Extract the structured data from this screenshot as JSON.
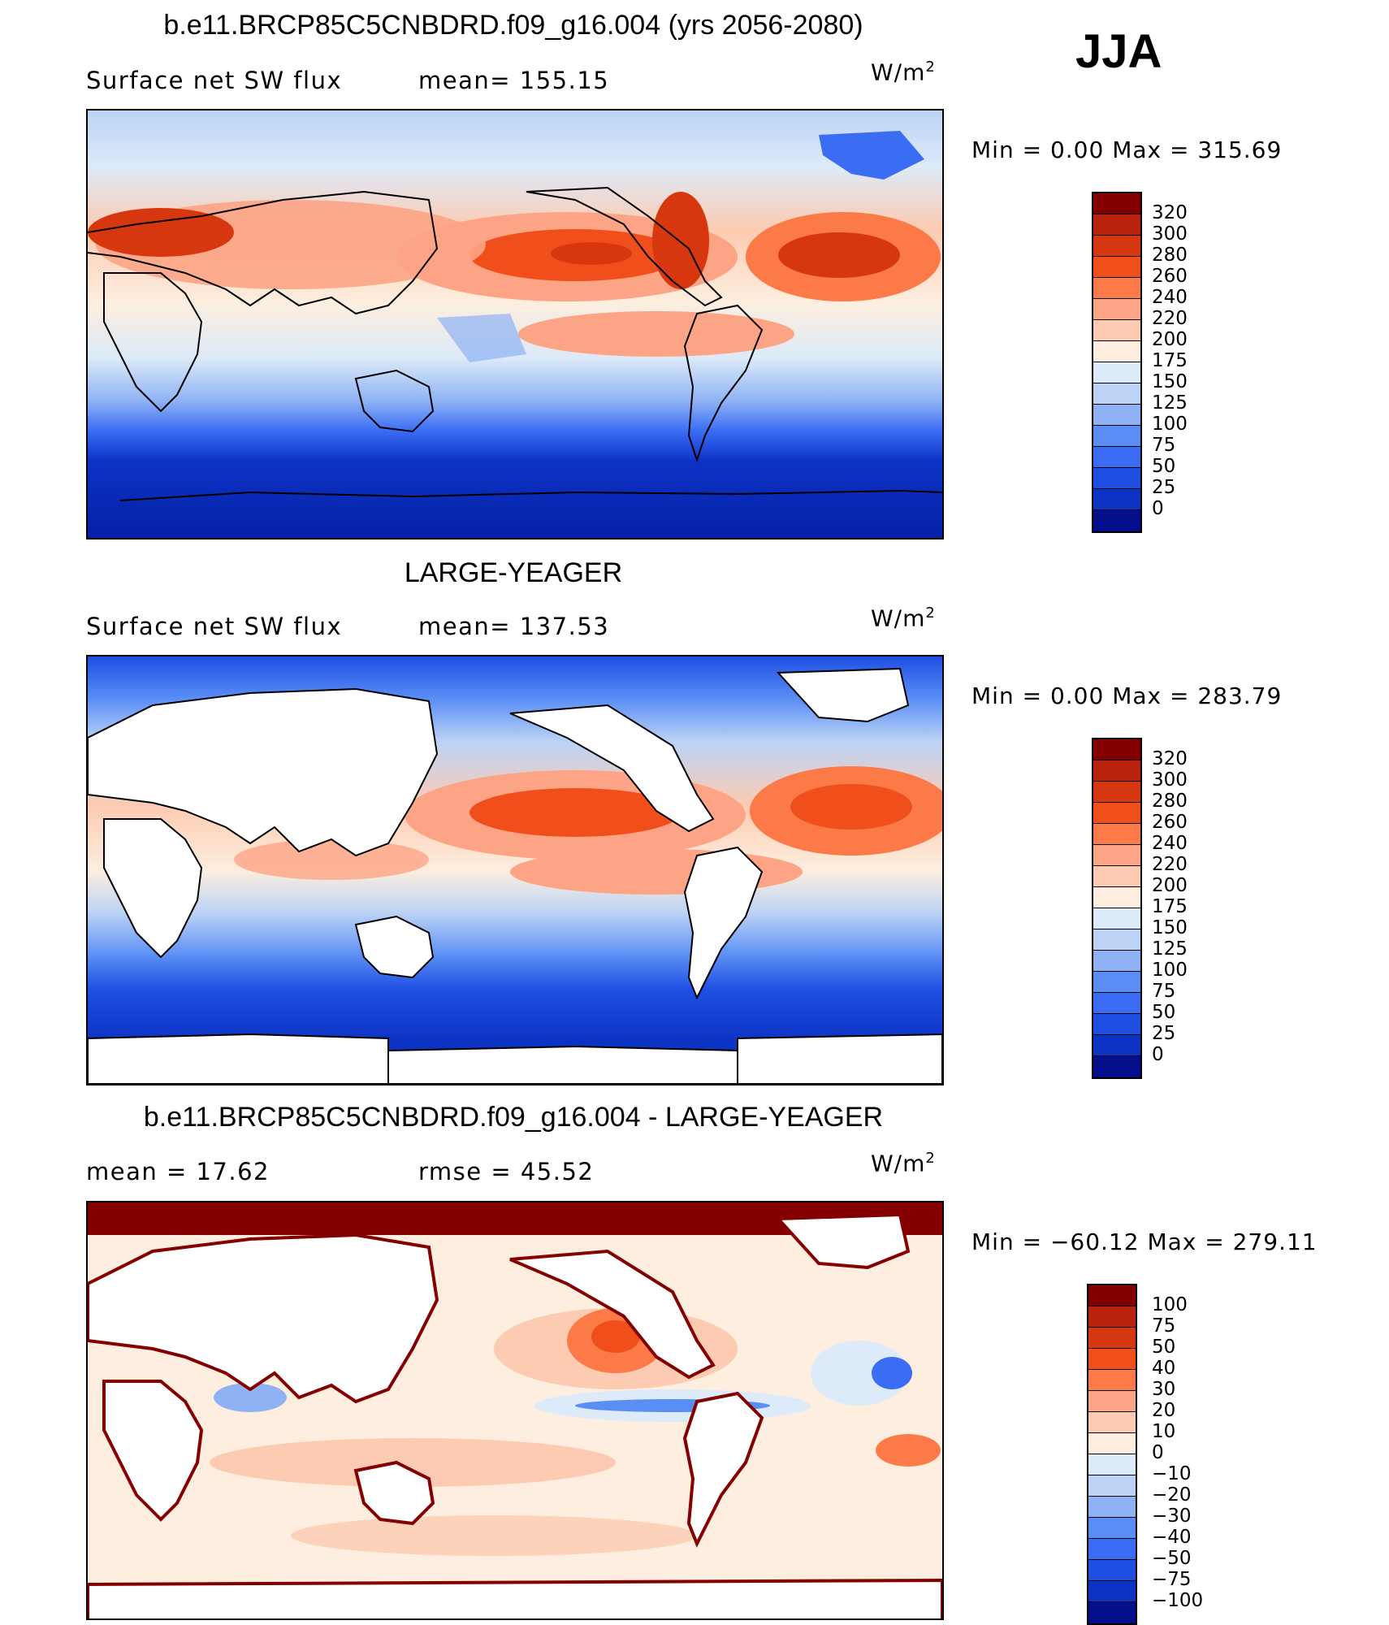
{
  "season": "JJA",
  "units": {
    "base": "W/m",
    "exp": "2"
  },
  "panels": [
    {
      "title": "b.e11.BRCP85C5CNBDRD.f09_g16.004 (yrs 2056-2080)",
      "left_label": "Surface net SW flux",
      "right_label": "mean= 155.15",
      "minmax": "Min =     0.00 Max  =  315.69",
      "land_masked": false,
      "colorbar_colors": [
        "#840000",
        "#b8210b",
        "#d7370f",
        "#f04f1c",
        "#fb7a47",
        "#fca485",
        "#fdcbb1",
        "#fdeedf",
        "#dceaf9",
        "#bcd3f5",
        "#8eb2f4",
        "#5b8ef5",
        "#3a6cf4",
        "#1e4fe3",
        "#0d33c4",
        "#040e8a"
      ],
      "colorbar_labels": [
        "320",
        "300",
        "280",
        "260",
        "240",
        "220",
        "200",
        "175",
        "150",
        "125",
        "100",
        "75",
        "50",
        "25",
        "0"
      ]
    },
    {
      "title": "LARGE-YEAGER",
      "left_label": "Surface net SW flux",
      "right_label": "mean= 137.53",
      "minmax": "Min =     0.00 Max  =  283.79",
      "land_masked": true,
      "colorbar_colors": [
        "#840000",
        "#b8210b",
        "#d7370f",
        "#f04f1c",
        "#fb7a47",
        "#fca485",
        "#fdcbb1",
        "#fdeedf",
        "#dceaf9",
        "#bcd3f5",
        "#8eb2f4",
        "#5b8ef5",
        "#3a6cf4",
        "#1e4fe3",
        "#0d33c4",
        "#040e8a"
      ],
      "colorbar_labels": [
        "320",
        "300",
        "280",
        "260",
        "240",
        "220",
        "200",
        "175",
        "150",
        "125",
        "100",
        "75",
        "50",
        "25",
        "0"
      ]
    },
    {
      "title": "b.e11.BRCP85C5CNBDRD.f09_g16.004 - LARGE-YEAGER",
      "left_label": "mean =   17.62",
      "right_label": "rmse =   45.52",
      "minmax": "Min = −60.12  Max  =  279.11",
      "land_masked": true,
      "colorbar_colors": [
        "#840000",
        "#b8210b",
        "#d7370f",
        "#f04f1c",
        "#fb7a47",
        "#fca485",
        "#fdcbb1",
        "#fdeedf",
        "#dceaf9",
        "#bcd3f5",
        "#8eb2f4",
        "#5b8ef5",
        "#3a6cf4",
        "#1e4fe3",
        "#0d33c4",
        "#040e8a"
      ],
      "colorbar_labels": [
        "100",
        "75",
        "50",
        "40",
        "30",
        "20",
        "10",
        "0",
        "−10",
        "−20",
        "−30",
        "−40",
        "−50",
        "−75",
        "−100"
      ]
    }
  ],
  "chart_data": [
    {
      "type": "heatmap",
      "title": "b.e11.BRCP85C5CNBDRD.f09_g16.004 (yrs 2056-2080)",
      "variable": "Surface net SW flux",
      "units": "W/m2",
      "mean": 155.15,
      "min": 0.0,
      "max": 315.69,
      "contour_levels": [
        0,
        25,
        50,
        75,
        100,
        125,
        150,
        175,
        200,
        220,
        240,
        260,
        280,
        300,
        320
      ]
    },
    {
      "type": "heatmap",
      "title": "LARGE-YEAGER",
      "variable": "Surface net SW flux",
      "units": "W/m2",
      "mean": 137.53,
      "min": 0.0,
      "max": 283.79,
      "contour_levels": [
        0,
        25,
        50,
        75,
        100,
        125,
        150,
        175,
        200,
        220,
        240,
        260,
        280,
        300,
        320
      ]
    },
    {
      "type": "heatmap",
      "title": "b.e11.BRCP85C5CNBDRD.f09_g16.004 - LARGE-YEAGER",
      "units": "W/m2",
      "mean": 17.62,
      "rmse": 45.52,
      "min": -60.12,
      "max": 279.11,
      "contour_levels": [
        -100,
        -75,
        -50,
        -40,
        -30,
        -20,
        -10,
        0,
        10,
        20,
        30,
        40,
        50,
        75,
        100
      ]
    }
  ]
}
